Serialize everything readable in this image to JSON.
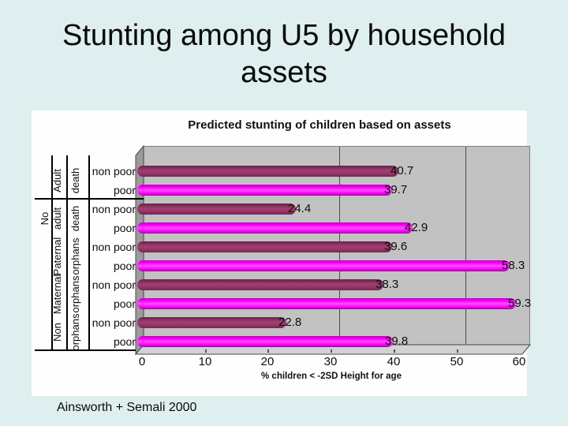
{
  "slide": {
    "title_line1": "Stunting among U5 by household",
    "title_line2": "assets",
    "attribution": "Ainsworth + Semali  2000",
    "background_color": "#dfeeee"
  },
  "chart": {
    "title": "Predicted stunting of children based on assets",
    "xlabel": "% children < -2SD Height for age"
  },
  "chart_data": {
    "type": "bar",
    "orientation": "horizontal",
    "title": "Predicted stunting of children based on assets",
    "xlabel": "% children < -2SD Height for age",
    "xlim": [
      0,
      60
    ],
    "x_ticks": [
      0,
      10,
      20,
      30,
      40,
      50,
      60
    ],
    "gridlines_at": [
      30,
      50
    ],
    "grid": "vertical-major-only",
    "legend": "none",
    "plot_bg_color": "#c2c2c2",
    "categories": [
      "Adult death",
      "No adult death",
      "Paternal orphans",
      "Maternal orphans",
      "Non orphans"
    ],
    "series": [
      {
        "name": "non poor",
        "color": "#993366",
        "values": [
          40.7,
          24.4,
          39.6,
          38.3,
          22.8
        ]
      },
      {
        "name": "poor",
        "color": "#ff00ff",
        "values": [
          39.7,
          42.9,
          58.3,
          59.3,
          39.8
        ]
      }
    ],
    "bar_value_labels": [
      40.7,
      39.7,
      24.4,
      42.9,
      39.6,
      58.3,
      38.3,
      59.3,
      22.8,
      39.8
    ],
    "category_axis": {
      "pair_labels": [
        "non poor",
        "poor"
      ],
      "outer_column": [
        {
          "group": 1,
          "text": "No"
        }
      ],
      "mid_column": [
        {
          "group": 0,
          "text": "Adult"
        },
        {
          "group": 1,
          "text": "adult"
        },
        {
          "group": 2,
          "text": "Paternal"
        },
        {
          "group": 3,
          "text": "Maternal"
        },
        {
          "group": 4,
          "text": "Non"
        }
      ],
      "inner_column": [
        {
          "group": 0,
          "text": "death"
        },
        {
          "group": 1,
          "text": "death"
        },
        {
          "group": 2,
          "text": "orphans"
        },
        {
          "group": 3,
          "text": "orphans"
        },
        {
          "group": 4,
          "text": "orphans"
        }
      ]
    }
  }
}
